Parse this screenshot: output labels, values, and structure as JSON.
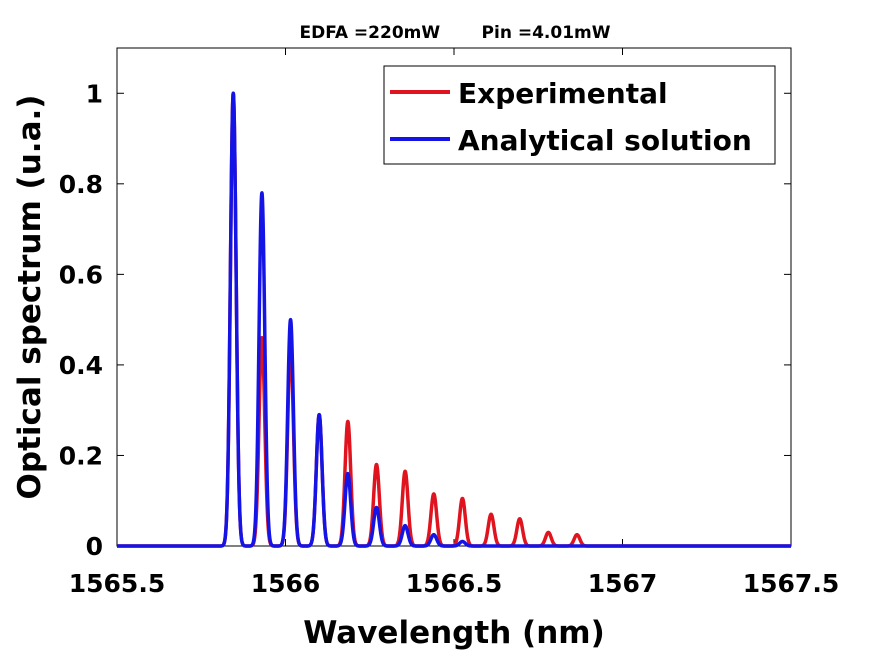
{
  "chart_data": {
    "type": "line",
    "title": "EDFA =220mW       Pin =4.01mW",
    "xlabel": "Wavelength (nm)",
    "ylabel": "Optical spectrum (u.a.)",
    "xlim": [
      1565.5,
      1567.5
    ],
    "ylim": [
      0,
      1.1
    ],
    "xticks": [
      1565.5,
      1566,
      1566.5,
      1567,
      1567.5
    ],
    "xtick_labels": [
      "1565.5",
      "1566",
      "1566.5",
      "1567",
      "1567.5"
    ],
    "yticks": [
      0,
      0.2,
      0.4,
      0.6,
      0.8,
      1
    ],
    "ytick_labels": [
      "0",
      "0.2",
      "0.4",
      "0.6",
      "0.8",
      "1"
    ],
    "grid": false,
    "legend_position": "top-right",
    "series": [
      {
        "name": "Experimental",
        "color": "#e0141e",
        "peak_centers": [
          1565.845,
          1565.93,
          1566.015,
          1566.1,
          1566.185,
          1566.27,
          1566.355,
          1566.44,
          1566.525,
          1566.61,
          1566.695,
          1566.78,
          1566.865
        ],
        "peak_values": [
          1.0,
          0.46,
          0.44,
          0.29,
          0.275,
          0.18,
          0.165,
          0.115,
          0.105,
          0.07,
          0.06,
          0.03,
          0.025
        ]
      },
      {
        "name": "Analytical solution",
        "color": "#1414e6",
        "peak_centers": [
          1565.845,
          1565.93,
          1566.015,
          1566.1,
          1566.185,
          1566.27,
          1566.355,
          1566.44,
          1566.525
        ],
        "peak_values": [
          1.0,
          0.78,
          0.5,
          0.29,
          0.16,
          0.085,
          0.045,
          0.025,
          0.01
        ]
      }
    ]
  }
}
